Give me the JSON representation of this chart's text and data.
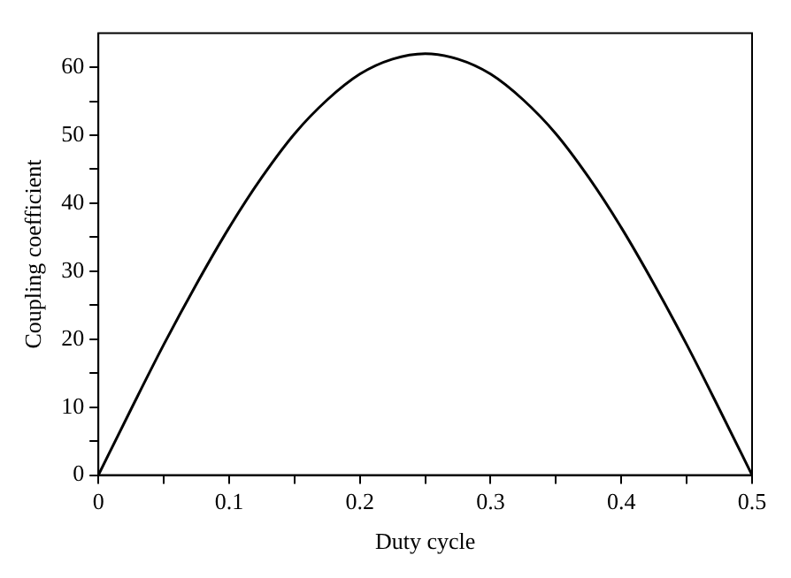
{
  "chart_data": {
    "type": "line",
    "xlabel": "Duty cycle",
    "ylabel": "Coupling coefficient",
    "x": [
      0,
      0.025,
      0.05,
      0.075,
      0.1,
      0.125,
      0.15,
      0.175,
      0.2,
      0.225,
      0.25,
      0.275,
      0.3,
      0.325,
      0.35,
      0.375,
      0.4,
      0.425,
      0.45,
      0.475,
      0.5
    ],
    "series": [
      {
        "color": "#000000",
        "values": [
          0,
          9.7,
          19.2,
          28.1,
          36.4,
          43.8,
          50.2,
          55.2,
          59.0,
          61.2,
          62,
          61.2,
          59.0,
          55.2,
          50.2,
          43.8,
          36.4,
          28.1,
          19.2,
          9.7,
          0
        ]
      }
    ],
    "xlim": [
      0,
      0.5
    ],
    "xticks": [
      0,
      {
        "value": 0.05,
        "label": null
      },
      0.1,
      {
        "value": 0.15,
        "label": null
      },
      0.2,
      {
        "value": 0.25,
        "label": null
      },
      0.3,
      {
        "value": 0.35,
        "label": null
      },
      0.4,
      {
        "value": 0.45,
        "label": null
      },
      0.5
    ],
    "ylim": [
      0,
      65
    ],
    "yticks": [
      0,
      {
        "value": 5,
        "label": null
      },
      10,
      {
        "value": 15,
        "label": null
      },
      20,
      {
        "value": 25,
        "label": null
      },
      30,
      {
        "value": 35,
        "label": null
      },
      40,
      {
        "value": 45,
        "label": null
      },
      50,
      {
        "value": 55,
        "label": null
      },
      60
    ],
    "grid": false,
    "legend": false,
    "marker": "none",
    "line_style": "solid"
  }
}
